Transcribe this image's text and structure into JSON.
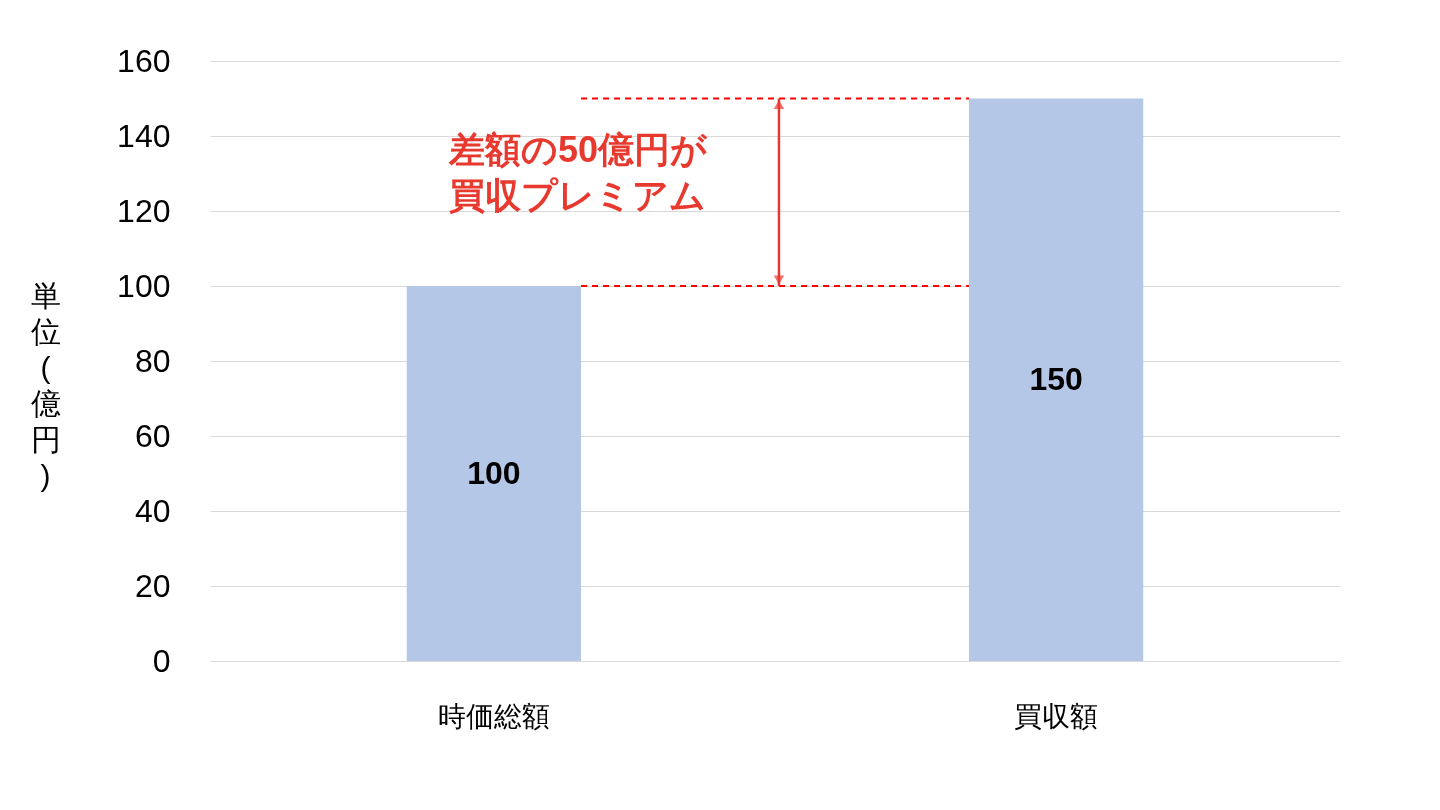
{
  "chart_data": {
    "type": "bar",
    "categories": [
      "時価総額",
      "買収額"
    ],
    "values": [
      100,
      150
    ],
    "color": "#b4c7e7",
    "ylabel": "単位(億円)",
    "ylim": [
      0,
      160
    ],
    "yticks": [
      0,
      20,
      40,
      60,
      80,
      100,
      120,
      140,
      160
    ],
    "grid": "y",
    "data_labels": true,
    "ref_lines": [
      {
        "axis": "y",
        "value": 150,
        "color": "#ff0000",
        "line_style": "dashed"
      },
      {
        "axis": "y",
        "value": 100,
        "color": "#ff0000",
        "line_style": "dashed"
      }
    ],
    "annotations": [
      "差額の50億円が",
      "買収プレミアム"
    ]
  }
}
